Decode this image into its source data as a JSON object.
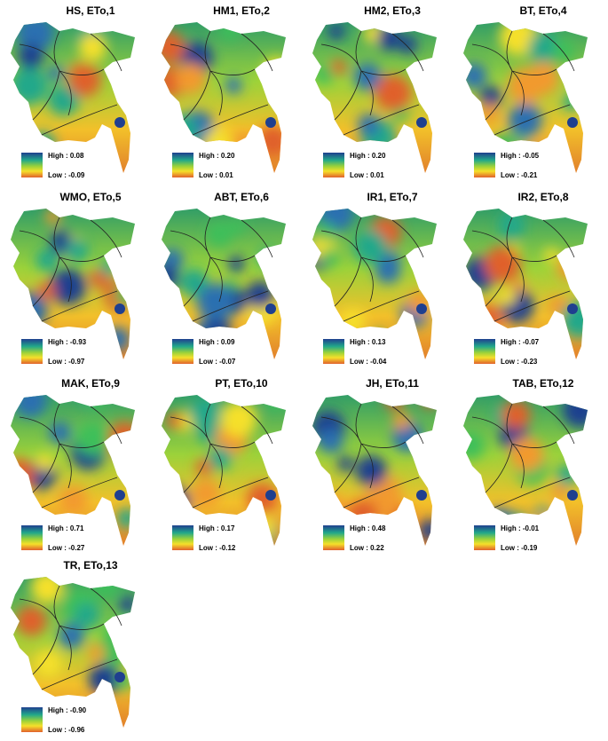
{
  "panels": [
    {
      "title": "HS, ETo,1",
      "high": "High : 0.08",
      "low": "Low : -0.09"
    },
    {
      "title": "HM1, ETo,2",
      "high": "High : 0.20",
      "low": "Low : 0.01"
    },
    {
      "title": "HM2, ETo,3",
      "high": "High : 0.20",
      "low": "Low : 0.01"
    },
    {
      "title": "BT, ETo,4",
      "high": "High : -0.05",
      "low": "Low : -0.21"
    },
    {
      "title": "WMO, ETo,5",
      "high": "High : -0.93",
      "low": "Low : -0.97"
    },
    {
      "title": "ABT, ETo,6",
      "high": "High : 0.09",
      "low": "Low : -0.07"
    },
    {
      "title": "IR1, ETo,7",
      "high": "High : 0.13",
      "low": "Low : -0.04"
    },
    {
      "title": "IR2, ETo,8",
      "high": "High : -0.07",
      "low": "Low : -0.23"
    },
    {
      "title": "MAK, ETo,9",
      "high": "High : 0.71",
      "low": "Low : -0.27"
    },
    {
      "title": "PT, ETo,10",
      "high": "High : 0.17",
      "low": "Low : -0.12"
    },
    {
      "title": "JH, ETo,11",
      "high": "High : 0.48",
      "low": "Low : 0.22"
    },
    {
      "title": "TAB, ETo,12",
      "high": "High : -0.01",
      "low": "Low : -0.19"
    },
    {
      "title": "TR, ETo,13",
      "high": "High : -0.90",
      "low": "Low : -0.96"
    }
  ]
}
